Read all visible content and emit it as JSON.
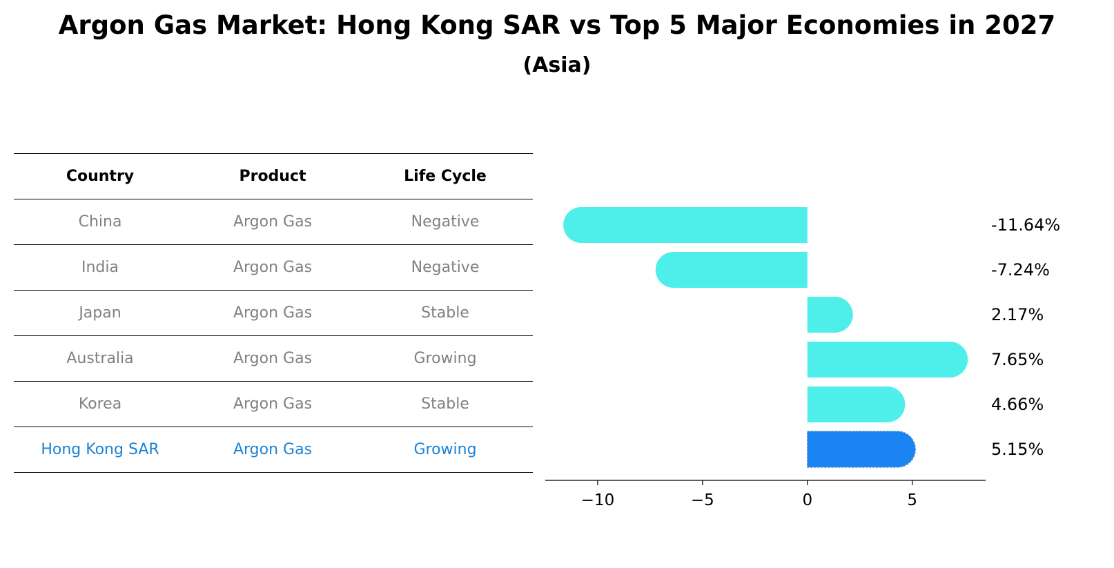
{
  "chart_data": {
    "type": "bar",
    "orientation": "horizontal",
    "title": "Argon Gas Market: Hong Kong SAR vs Top 5 Major Economies in 2027",
    "subtitle": "(Asia)",
    "categories": [
      "China",
      "India",
      "Japan",
      "Australia",
      "Korea",
      "Hong Kong SAR"
    ],
    "values": [
      -11.64,
      -7.24,
      2.17,
      7.65,
      4.66,
      5.15
    ],
    "value_labels": [
      "-11.64%",
      "-7.24%",
      "2.17%",
      "7.65%",
      "4.66%",
      "5.15%"
    ],
    "highlight_index": 5,
    "xlim": [
      -12.5,
      8.5
    ],
    "xticks": [
      -10,
      -5,
      0,
      5
    ],
    "xtick_labels": [
      "−10",
      "−5",
      "0",
      "5"
    ],
    "xlabel": "",
    "ylabel": "",
    "colors": {
      "bar": "#4eeeea",
      "highlight_bar": "#1984f2",
      "highlight_text": "#1a82d6",
      "muted_text": "#808080"
    }
  },
  "table": {
    "headers": [
      "Country",
      "Product",
      "Life Cycle"
    ],
    "rows": [
      [
        "China",
        "Argon Gas",
        "Negative"
      ],
      [
        "India",
        "Argon Gas",
        "Negative"
      ],
      [
        "Japan",
        "Argon Gas",
        "Stable"
      ],
      [
        "Australia",
        "Argon Gas",
        "Growing"
      ],
      [
        "Korea",
        "Argon Gas",
        "Stable"
      ],
      [
        "Hong Kong SAR",
        "Argon Gas",
        "Growing"
      ]
    ]
  }
}
